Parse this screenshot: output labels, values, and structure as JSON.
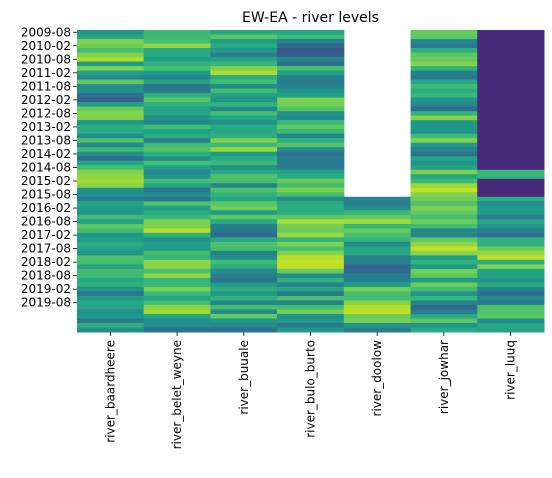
{
  "chart_data": {
    "type": "heatmap",
    "title": "EW-EA - river levels",
    "colormap": "viridis",
    "colorbar": false,
    "xlabel": "",
    "ylabel": "",
    "columns": [
      "river_baardheere",
      "river_belet_weyne",
      "river_buuale",
      "river_bulo_burto",
      "river_doolow",
      "river_jowhar",
      "river_luuq"
    ],
    "row_count": 67,
    "ytick_labels": [
      "2009-08",
      "2010-02",
      "2010-08",
      "2011-02",
      "2011-08",
      "2012-02",
      "2012-08",
      "2013-02",
      "2013-08",
      "2014-02",
      "2014-08",
      "2015-02",
      "2015-08",
      "2016-02",
      "2016-08",
      "2017-02",
      "2017-08",
      "2018-02",
      "2018-08",
      "2019-02",
      "2019-08"
    ],
    "missing": [
      {
        "column": "river_doolow",
        "from": "2009-08",
        "to": "2015-08",
        "note": "no data (blank)"
      }
    ],
    "constant_values": [
      {
        "column": "river_luuq",
        "from": "2009-08",
        "to": "2015-08",
        "value": 0.1,
        "exception": {
          "at": "2014-11",
          "value": 0.6
        }
      }
    ],
    "seed": 7
  }
}
